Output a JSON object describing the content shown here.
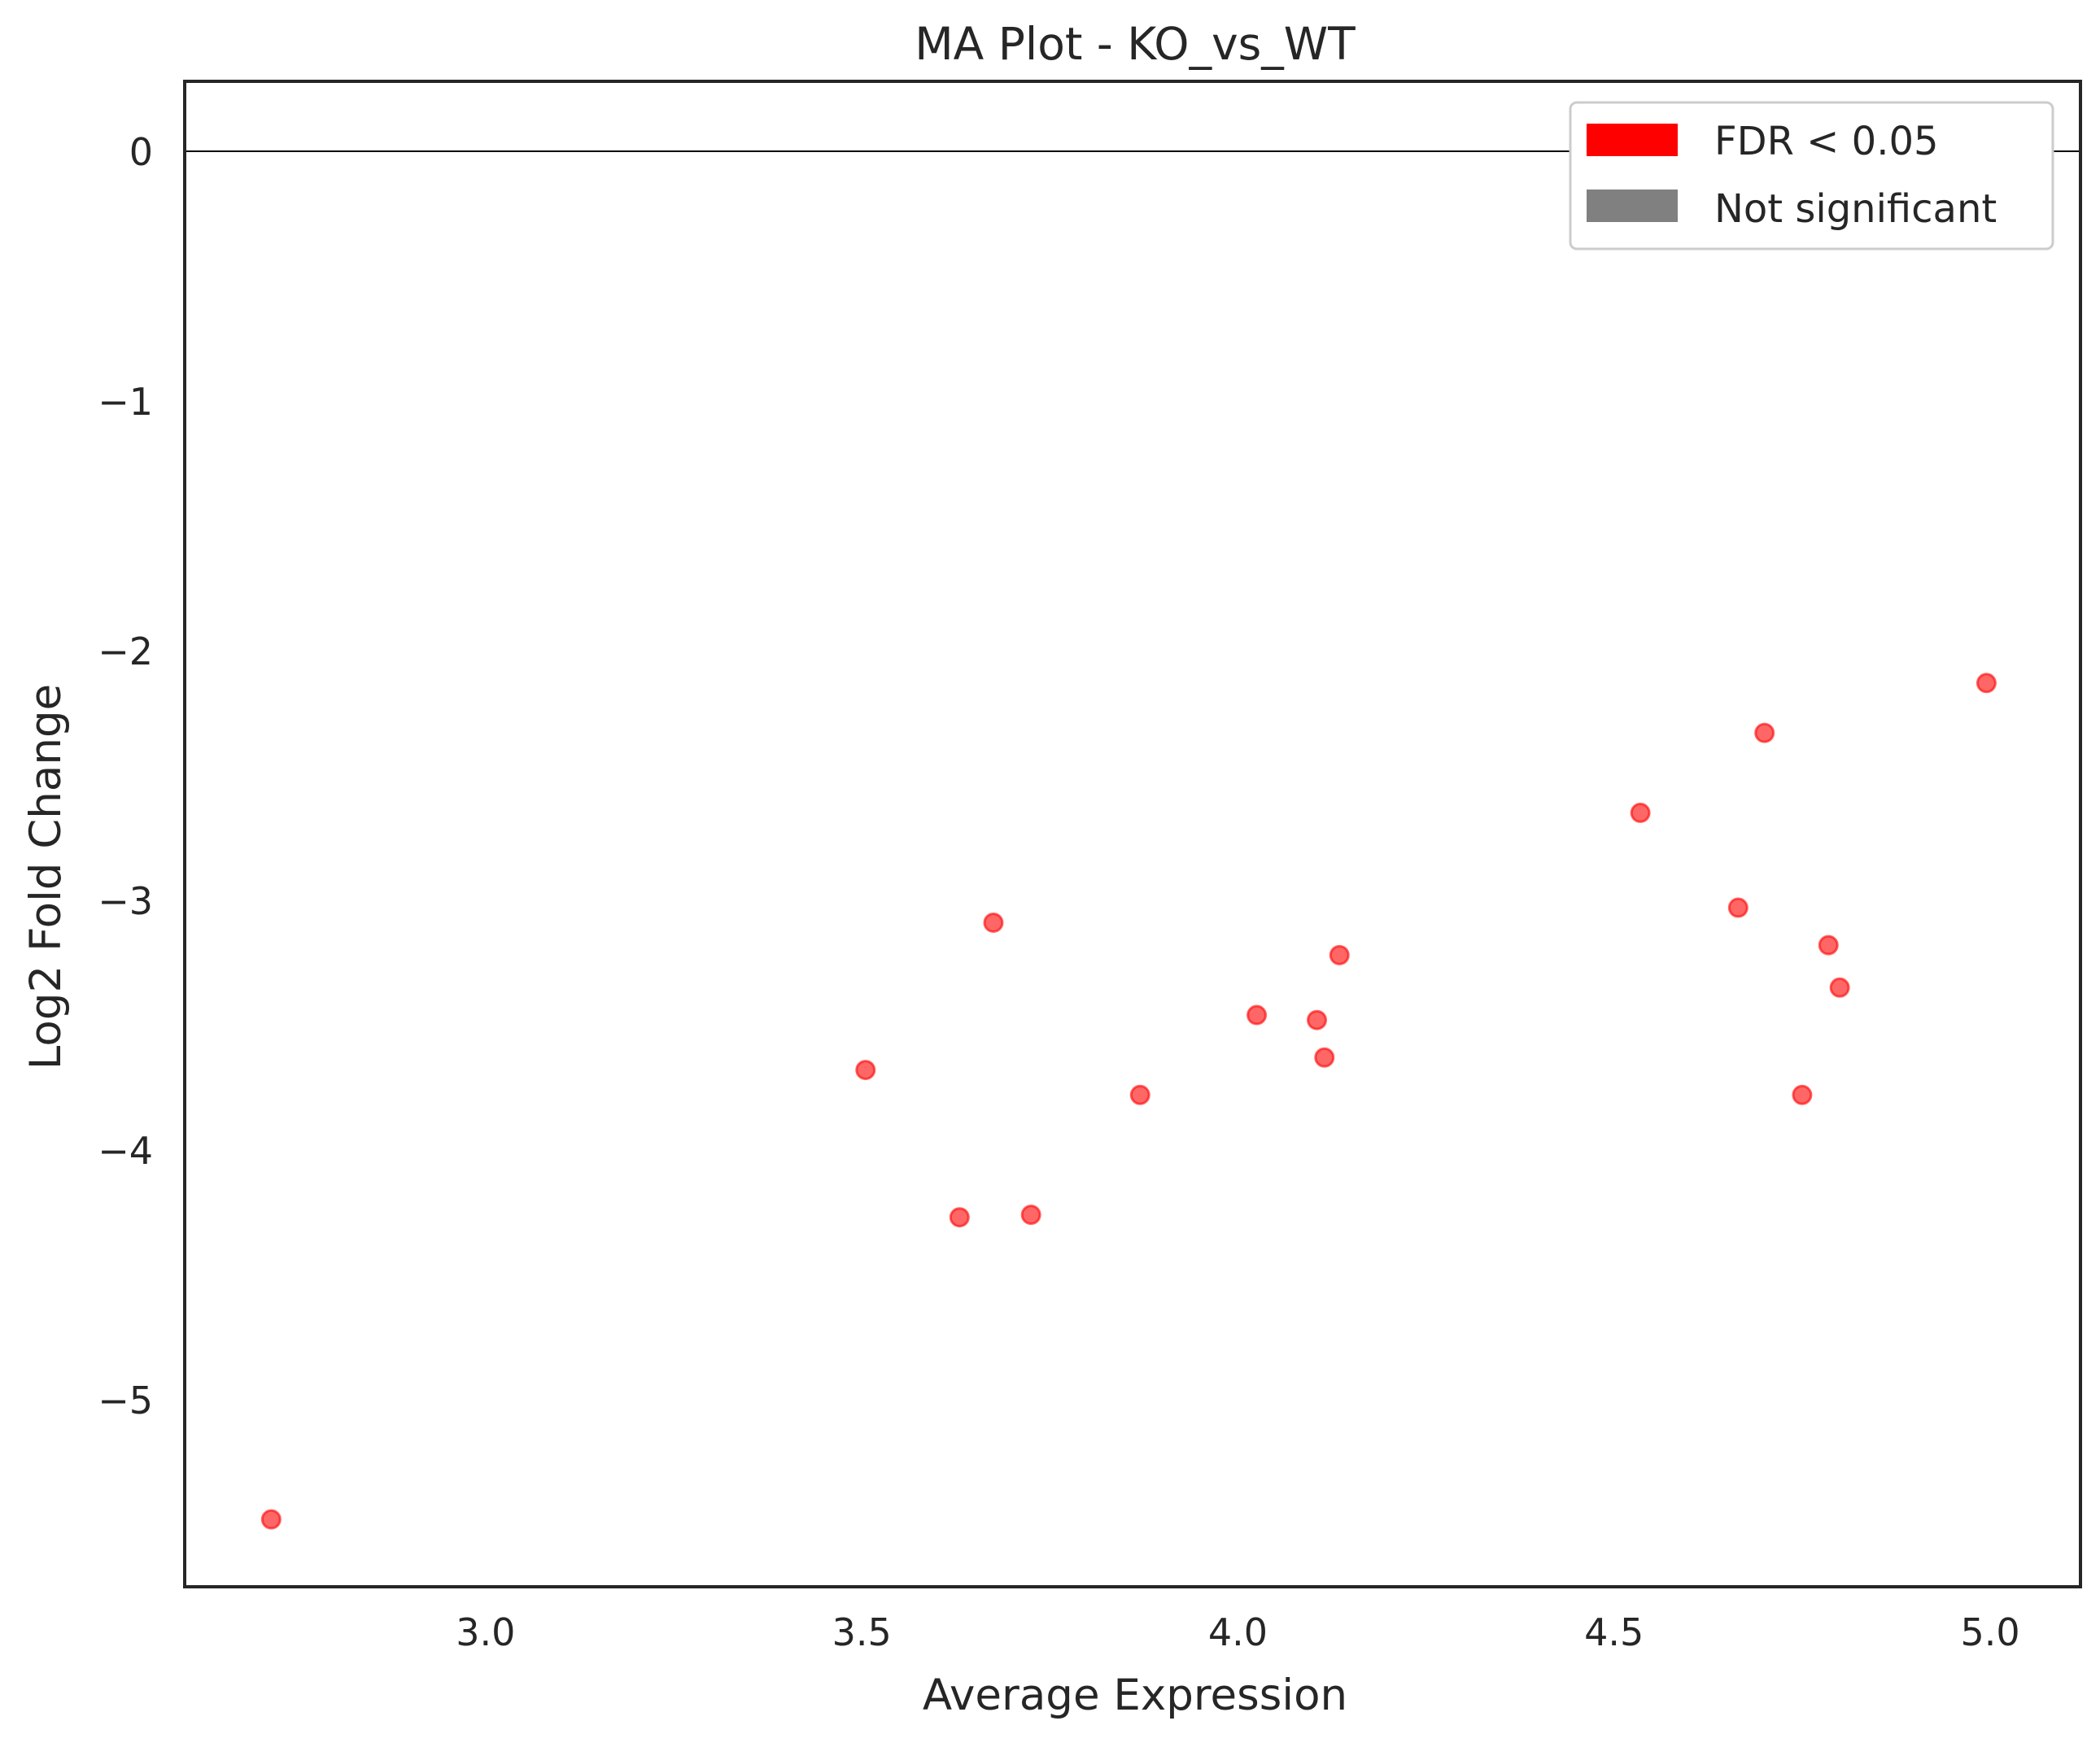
{
  "chart_data": {
    "type": "scatter",
    "title": "MA Plot - KO_vs_WT",
    "xlabel": "Average Expression",
    "ylabel": "Log2 Fold Change",
    "xlim": [
      2.6,
      5.12
    ],
    "ylim": [
      -5.75,
      0.28
    ],
    "xticks": [
      {
        "value": 3.0,
        "label": "3.0"
      },
      {
        "value": 3.5,
        "label": "3.5"
      },
      {
        "value": 4.0,
        "label": "4.0"
      },
      {
        "value": 4.5,
        "label": "4.5"
      },
      {
        "value": 5.0,
        "label": "5.0"
      }
    ],
    "yticks": [
      {
        "value": 0,
        "label": "0"
      },
      {
        "value": -1,
        "label": "−1"
      },
      {
        "value": -2,
        "label": "−2"
      },
      {
        "value": -3,
        "label": "−3"
      },
      {
        "value": -4,
        "label": "−4"
      },
      {
        "value": -5,
        "label": "−5"
      }
    ],
    "reference_line_y": 0,
    "grid": false,
    "legend": {
      "position": "top-right",
      "entries": [
        {
          "label": "FDR < 0.05",
          "color": "#ff0000"
        },
        {
          "label": "Not significant",
          "color": "#808080"
        }
      ]
    },
    "series": [
      {
        "name": "FDR < 0.05",
        "color": "#ff0000",
        "points": [
          {
            "x": 2.715,
            "y": -5.48
          },
          {
            "x": 3.505,
            "y": -3.68
          },
          {
            "x": 3.63,
            "y": -4.27
          },
          {
            "x": 3.675,
            "y": -3.09
          },
          {
            "x": 3.725,
            "y": -4.26
          },
          {
            "x": 3.87,
            "y": -3.78
          },
          {
            "x": 4.025,
            "y": -3.46
          },
          {
            "x": 4.105,
            "y": -3.48
          },
          {
            "x": 4.115,
            "y": -3.63
          },
          {
            "x": 4.135,
            "y": -3.22
          },
          {
            "x": 4.535,
            "y": -2.65
          },
          {
            "x": 4.665,
            "y": -3.03
          },
          {
            "x": 4.7,
            "y": -2.33
          },
          {
            "x": 4.75,
            "y": -3.78
          },
          {
            "x": 4.785,
            "y": -3.18
          },
          {
            "x": 4.8,
            "y": -3.35
          },
          {
            "x": 4.995,
            "y": -2.13
          }
        ]
      }
    ]
  }
}
